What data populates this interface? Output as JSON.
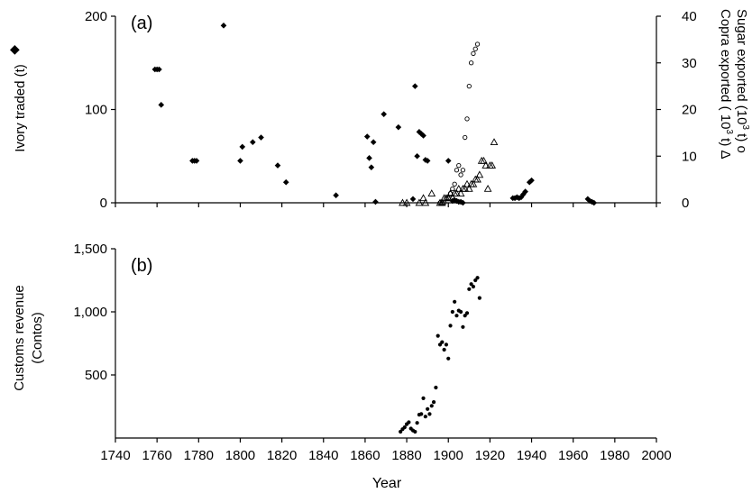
{
  "chart_data": [
    {
      "panel": "(a)",
      "type": "scatter",
      "xlim": [
        1740,
        2000
      ],
      "ylim_left": [
        0,
        200
      ],
      "ylim_right": [
        0,
        40
      ],
      "yticks_left": [
        "0",
        "100",
        "200"
      ],
      "yticks_right": [
        "0",
        "10",
        "20",
        "30",
        "40"
      ],
      "ylabel_left": "Ivory traded (t)",
      "ylabel_left_marker": "◆",
      "ylabel_right_copra": "Copra exported ( 10",
      "ylabel_right_copra_sup": "3",
      "ylabel_right_copra_end": " t) Δ",
      "ylabel_right_sugar": "Sugar exported (10",
      "ylabel_right_sugar_sup": "3",
      "ylabel_right_sugar_end": " t) o",
      "series": [
        {
          "name": "Ivory traded (t)",
          "marker": "diamond",
          "axis": "left",
          "points": [
            [
              1759,
              143
            ],
            [
              1760,
              143
            ],
            [
              1761,
              143
            ],
            [
              1762,
              105
            ],
            [
              1777,
              45
            ],
            [
              1778,
              45
            ],
            [
              1779,
              45
            ],
            [
              1792,
              190
            ],
            [
              1800,
              45
            ],
            [
              1801,
              60
            ],
            [
              1806,
              65
            ],
            [
              1810,
              70
            ],
            [
              1818,
              40
            ],
            [
              1822,
              22
            ],
            [
              1846,
              8
            ],
            [
              1861,
              71
            ],
            [
              1862,
              48
            ],
            [
              1863,
              38
            ],
            [
              1864,
              65
            ],
            [
              1865,
              1
            ],
            [
              1869,
              95
            ],
            [
              1876,
              81
            ],
            [
              1883,
              4
            ],
            [
              1884,
              125
            ],
            [
              1885,
              50
            ],
            [
              1886,
              76
            ],
            [
              1887,
              74
            ],
            [
              1888,
              72
            ],
            [
              1889,
              46
            ],
            [
              1890,
              45
            ],
            [
              1900,
              45
            ],
            [
              1902,
              2
            ],
            [
              1903,
              3
            ],
            [
              1904,
              2
            ],
            [
              1905,
              1
            ],
            [
              1906,
              1
            ],
            [
              1907,
              0
            ],
            [
              1931,
              5
            ],
            [
              1932,
              5
            ],
            [
              1933,
              6
            ],
            [
              1934,
              5
            ],
            [
              1935,
              6
            ],
            [
              1936,
              9
            ],
            [
              1937,
              12
            ],
            [
              1939,
              22
            ],
            [
              1940,
              24
            ],
            [
              1967,
              4
            ],
            [
              1968,
              2
            ],
            [
              1969,
              1
            ],
            [
              1970,
              0
            ]
          ]
        },
        {
          "name": "Copra exported (10^3 t)",
          "marker": "triangle",
          "axis": "right",
          "points": [
            [
              1878,
              0
            ],
            [
              1880,
              0
            ],
            [
              1886,
              0
            ],
            [
              1888,
              1
            ],
            [
              1889,
              0
            ],
            [
              1892,
              2
            ],
            [
              1896,
              0
            ],
            [
              1897,
              0
            ],
            [
              1898,
              1
            ],
            [
              1899,
              1
            ],
            [
              1900,
              1
            ],
            [
              1901,
              2
            ],
            [
              1902,
              1
            ],
            [
              1903,
              2
            ],
            [
              1904,
              2
            ],
            [
              1905,
              3
            ],
            [
              1906,
              2
            ],
            [
              1907,
              3
            ],
            [
              1908,
              3
            ],
            [
              1909,
              4
            ],
            [
              1910,
              3
            ],
            [
              1911,
              4
            ],
            [
              1912,
              4
            ],
            [
              1913,
              5
            ],
            [
              1914,
              5
            ],
            [
              1915,
              6
            ],
            [
              1916,
              9
            ],
            [
              1917,
              9
            ],
            [
              1918,
              8
            ],
            [
              1919,
              3
            ],
            [
              1920,
              8
            ],
            [
              1921,
              8
            ],
            [
              1922,
              13
            ]
          ]
        },
        {
          "name": "Sugar exported (10^3 t)",
          "marker": "circle",
          "axis": "right",
          "points": [
            [
              1896,
              0
            ],
            [
              1897,
              0
            ],
            [
              1898,
              0
            ],
            [
              1899,
              1
            ],
            [
              1900,
              1
            ],
            [
              1901,
              2
            ],
            [
              1902,
              3
            ],
            [
              1903,
              4
            ],
            [
              1904,
              7
            ],
            [
              1905,
              8
            ],
            [
              1906,
              6
            ],
            [
              1907,
              7
            ],
            [
              1908,
              14
            ],
            [
              1909,
              18
            ],
            [
              1910,
              25
            ],
            [
              1911,
              30
            ],
            [
              1912,
              32
            ],
            [
              1913,
              33
            ],
            [
              1914,
              34
            ]
          ]
        }
      ]
    },
    {
      "panel": "(b)",
      "type": "scatter",
      "xlim": [
        1740,
        2000
      ],
      "ylim": [
        0,
        1500
      ],
      "yticks": [
        "500",
        "1,000",
        "1,500"
      ],
      "xticks": [
        "1740",
        "1760",
        "1780",
        "1800",
        "1820",
        "1840",
        "1860",
        "1880",
        "1900",
        "1920",
        "1940",
        "1960",
        "1980",
        "2000"
      ],
      "xlabel": "Year",
      "ylabel_line1": "Customs revenue",
      "ylabel_line2": "(Contos)",
      "series": [
        {
          "name": "Customs revenue (Contos)",
          "marker": "dot",
          "points": [
            [
              1877,
              50
            ],
            [
              1878,
              70
            ],
            [
              1879,
              85
            ],
            [
              1880,
              110
            ],
            [
              1881,
              125
            ],
            [
              1882,
              75
            ],
            [
              1883,
              60
            ],
            [
              1884,
              50
            ],
            [
              1885,
              120
            ],
            [
              1886,
              185
            ],
            [
              1887,
              190
            ],
            [
              1888,
              315
            ],
            [
              1889,
              170
            ],
            [
              1890,
              230
            ],
            [
              1891,
              190
            ],
            [
              1892,
              255
            ],
            [
              1893,
              285
            ],
            [
              1894,
              400
            ],
            [
              1895,
              810
            ],
            [
              1896,
              740
            ],
            [
              1897,
              760
            ],
            [
              1898,
              700
            ],
            [
              1899,
              740
            ],
            [
              1900,
              630
            ],
            [
              1901,
              890
            ],
            [
              1902,
              1000
            ],
            [
              1903,
              1080
            ],
            [
              1904,
              970
            ],
            [
              1905,
              1010
            ],
            [
              1906,
              1000
            ],
            [
              1907,
              880
            ],
            [
              1908,
              970
            ],
            [
              1909,
              990
            ],
            [
              1910,
              1180
            ],
            [
              1911,
              1220
            ],
            [
              1912,
              1200
            ],
            [
              1913,
              1250
            ],
            [
              1914,
              1270
            ],
            [
              1915,
              1110
            ]
          ]
        }
      ]
    }
  ]
}
